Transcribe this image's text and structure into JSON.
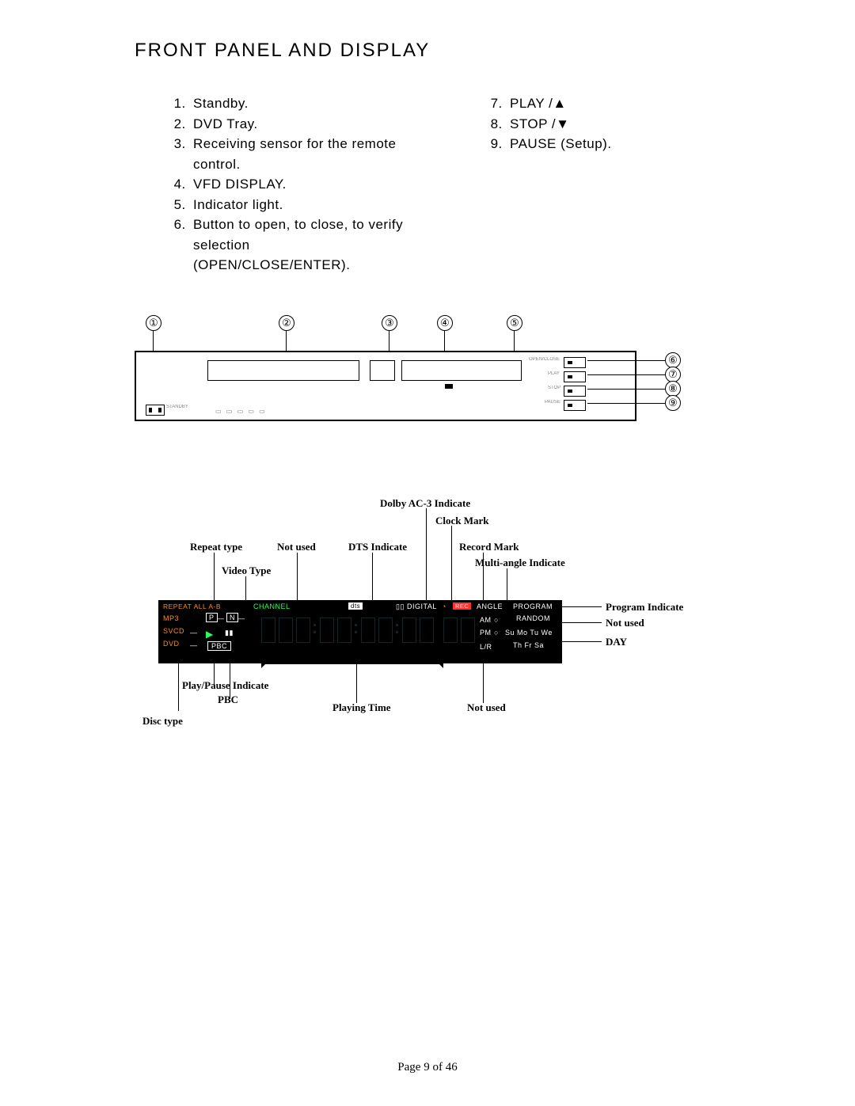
{
  "title": "FRONT PANEL AND DISPLAY",
  "list_left": [
    "Standby.",
    "DVD Tray.",
    "Receiving sensor for the remote control.",
    "VFD DISPLAY.",
    "Indicator light.",
    "Button to open, to close, to verify selection (OPEN/CLOSE/ENTER)."
  ],
  "list_right": [
    "PLAY /▲",
    "STOP /▼",
    "PAUSE (Setup)."
  ],
  "list_right_start": 7,
  "panel": {
    "callouts_top": [
      "①",
      "②",
      "③",
      "④",
      "⑤"
    ],
    "callouts_right": [
      "⑥",
      "⑦",
      "⑧",
      "⑨"
    ]
  },
  "vfd_labels": {
    "dolby": "Dolby AC-3 Indicate",
    "clock": "Clock Mark",
    "repeat": "Repeat type",
    "notused_top": "Not used",
    "dts": "DTS Indicate",
    "record": "Record Mark",
    "multi": "Multi-angle Indicate",
    "video": "Video Type",
    "playpause": "Play/Pause Indicate",
    "pbc": "PBC",
    "playtime": "Playing Time",
    "notused_bot": "Not used",
    "disctype": "Disc type",
    "program": "Program Indicate",
    "notused_right": "Not used",
    "day": "DAY"
  },
  "vfd_text": {
    "repeat": "REPEAT ALL A-B",
    "channel": "CHANNEL",
    "dts": "dts",
    "dolby": "DIGITAL",
    "dolby_box": "▯▯",
    "clock": "◔",
    "rec": "REC",
    "angle": "ANGLE",
    "program": "PROGRAM",
    "random": "RANDOM",
    "days1": "Su Mo Tu We",
    "days2": "Th Fr Sa",
    "mp3": "MP3",
    "svcd": "SVCD",
    "dvd": "DVD",
    "p": "P",
    "n": "N",
    "play": "▶",
    "pause": "▮▮",
    "pbc": "PBC",
    "am": "AM",
    "pm": "PM",
    "lr": "L/R"
  },
  "colors": {
    "orange": "#ff8c1a",
    "green": "#2cff5a",
    "red": "#ff3030",
    "cyan_dim": "#204040",
    "bg_black": "#000000"
  },
  "footer": "Page 9 of 46"
}
